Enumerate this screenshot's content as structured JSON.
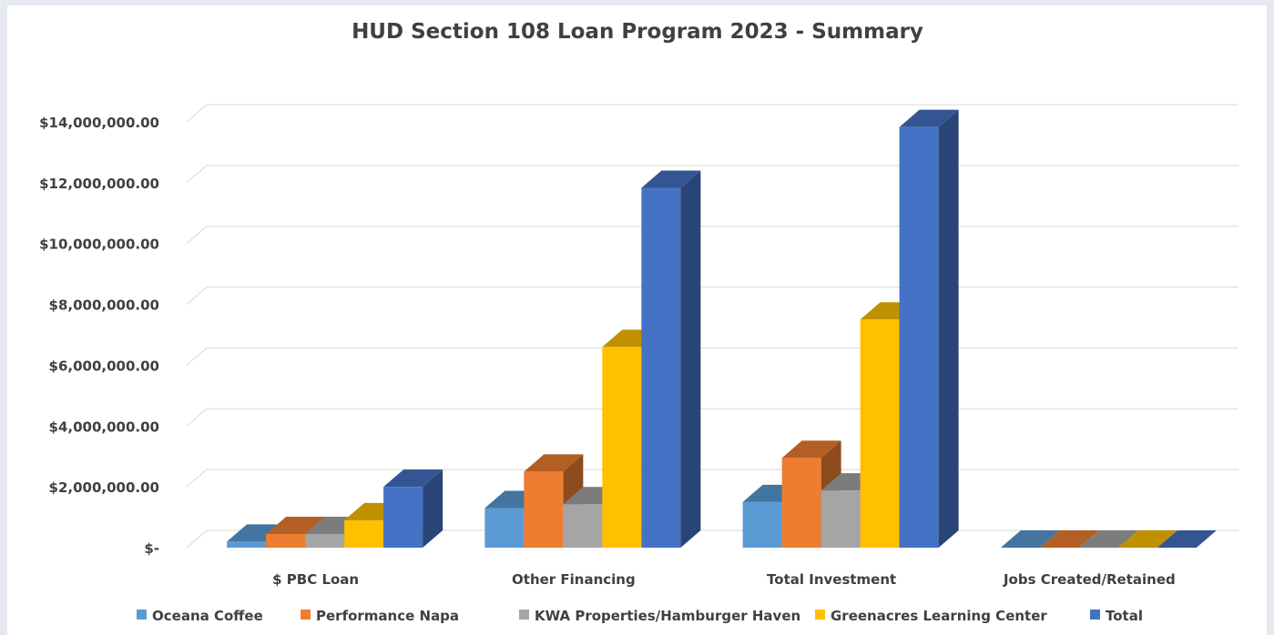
{
  "chart_data": {
    "type": "bar3d",
    "title": "HUD Section 108 Loan Program 2023 - Summary",
    "categories": [
      "$ PBC Loan",
      "Other Financing",
      "Total Investment",
      "Jobs Created/Retained"
    ],
    "series": [
      {
        "name": "Oceana Coffee",
        "color": "#5b9bd5",
        "values": [
          200000,
          1300000,
          1500000,
          0
        ]
      },
      {
        "name": "Performance Napa",
        "color": "#ed7d31",
        "values": [
          450000,
          2500000,
          2950000,
          0
        ]
      },
      {
        "name": "KWA Properties/Hamburger Haven",
        "color": "#a5a5a5",
        "values": [
          450000,
          1430000,
          1880000,
          0
        ]
      },
      {
        "name": "Greenacres Learning Center",
        "color": "#ffc000",
        "values": [
          900000,
          6600000,
          7500000,
          0
        ]
      },
      {
        "name": "Total",
        "color": "#4472c4",
        "values": [
          2000000,
          11830000,
          13830000,
          0
        ]
      }
    ],
    "ylim": [
      0,
      14000000
    ],
    "yticks": [
      {
        "value": 0,
        "label": "$-"
      },
      {
        "value": 2000000,
        "label": "$2,000,000.00"
      },
      {
        "value": 4000000,
        "label": "$4,000,000.00"
      },
      {
        "value": 6000000,
        "label": "$6,000,000.00"
      },
      {
        "value": 8000000,
        "label": "$8,000,000.00"
      },
      {
        "value": 10000000,
        "label": "$10,000,000.00"
      },
      {
        "value": 12000000,
        "label": "$12,000,000.00"
      },
      {
        "value": 14000000,
        "label": "$14,000,000.00"
      }
    ],
    "grid": true,
    "legend": "bottom"
  }
}
